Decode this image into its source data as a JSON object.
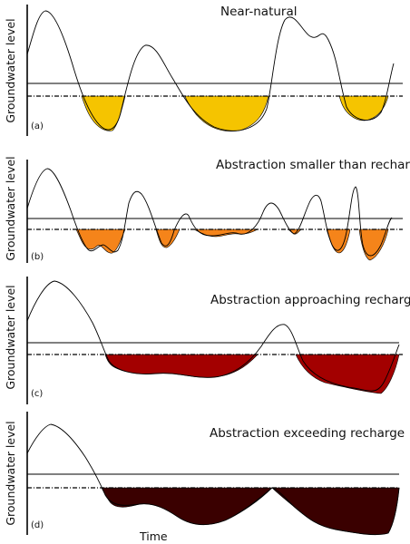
{
  "figure": {
    "panels": [
      {
        "letter": "(a)",
        "title": "Near-natural",
        "ylabel": "Groundwater level",
        "fill_color": "#F5C400"
      },
      {
        "letter": "(b)",
        "title": "Abstraction smaller than recharge",
        "ylabel": "Groundwater level",
        "fill_color": "#F5841A"
      },
      {
        "letter": "(c)",
        "title": "Abstraction approaching recharge",
        "ylabel": "Groundwater level",
        "fill_color": "#A30000"
      },
      {
        "letter": "(d)",
        "title": "Abstraction exceeding recharge",
        "ylabel": "Groundwater level",
        "fill_color": "#3A0000"
      }
    ],
    "xlabel": "Time"
  }
}
